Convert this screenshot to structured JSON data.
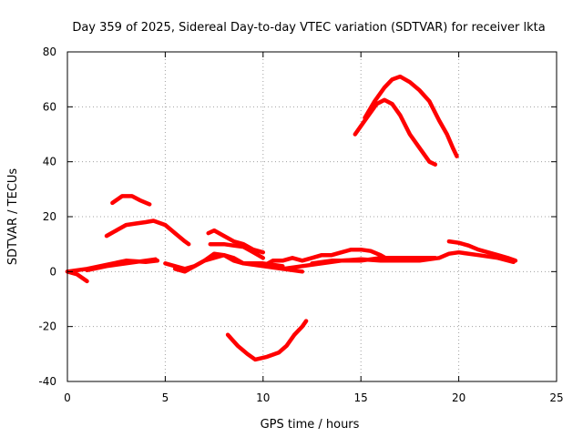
{
  "chart_data": {
    "type": "line",
    "title": "Day 359 of 2025, Sidereal Day-to-day VTEC variation (SDTVAR) for receiver lkta",
    "xlabel": "GPS time / hours",
    "ylabel": "SDTVAR / TECUs",
    "xlim": [
      0,
      25
    ],
    "ylim": [
      -40,
      80
    ],
    "xticks": [
      0,
      5,
      10,
      15,
      20,
      25
    ],
    "yticks": [
      -40,
      -20,
      0,
      20,
      40,
      60,
      80
    ],
    "grid": true,
    "color": "#ff0000",
    "series": [
      {
        "name": "s1",
        "points": [
          [
            0,
            0
          ],
          [
            0.5,
            -1
          ],
          [
            1,
            -3.5
          ]
        ]
      },
      {
        "name": "s2",
        "points": [
          [
            0,
            0
          ],
          [
            1,
            1
          ],
          [
            2,
            2.5
          ],
          [
            3,
            4
          ],
          [
            4,
            3.5
          ],
          [
            4.6,
            4
          ]
        ]
      },
      {
        "name": "s3",
        "points": [
          [
            1,
            0.5
          ],
          [
            2,
            2
          ],
          [
            3,
            3
          ],
          [
            4,
            4
          ],
          [
            4.5,
            4.5
          ]
        ]
      },
      {
        "name": "s4",
        "points": [
          [
            2,
            13
          ],
          [
            2.5,
            15
          ],
          [
            3,
            17
          ],
          [
            3.5,
            17.5
          ],
          [
            4,
            18
          ],
          [
            4.4,
            18.5
          ],
          [
            5,
            17
          ],
          [
            5.5,
            14
          ],
          [
            6,
            11
          ],
          [
            6.2,
            10
          ]
        ]
      },
      {
        "name": "s5",
        "points": [
          [
            2.3,
            25
          ],
          [
            2.8,
            27.5
          ],
          [
            3.3,
            27.5
          ],
          [
            3.7,
            26
          ],
          [
            4.2,
            24.5
          ]
        ]
      },
      {
        "name": "s6",
        "points": [
          [
            5,
            3
          ],
          [
            5.5,
            2
          ],
          [
            6,
            1
          ],
          [
            6.5,
            2
          ],
          [
            7,
            4
          ],
          [
            7.5,
            6.5
          ],
          [
            8,
            6
          ],
          [
            8.5,
            4
          ],
          [
            9,
            3
          ],
          [
            10,
            3
          ],
          [
            11,
            2
          ]
        ]
      },
      {
        "name": "s7",
        "points": [
          [
            7.2,
            14
          ],
          [
            7.5,
            15
          ],
          [
            8,
            13
          ],
          [
            8.5,
            11
          ],
          [
            9,
            10
          ],
          [
            9.5,
            8
          ],
          [
            10,
            7
          ]
        ]
      },
      {
        "name": "s8",
        "points": [
          [
            7.3,
            10
          ],
          [
            8,
            10
          ],
          [
            9,
            9
          ],
          [
            9.5,
            7
          ],
          [
            10,
            5
          ]
        ]
      },
      {
        "name": "s9",
        "points": [
          [
            5.5,
            1
          ],
          [
            6,
            0
          ],
          [
            6.5,
            2
          ],
          [
            7,
            4
          ],
          [
            8,
            6
          ],
          [
            8.5,
            5
          ],
          [
            9,
            3
          ],
          [
            10,
            2
          ],
          [
            11,
            1
          ],
          [
            12,
            0
          ]
        ]
      },
      {
        "name": "s10",
        "points": [
          [
            8.2,
            -23
          ],
          [
            8.7,
            -27
          ],
          [
            9.2,
            -30
          ],
          [
            9.6,
            -32
          ],
          [
            10.2,
            -31
          ],
          [
            10.8,
            -29.5
          ],
          [
            11.2,
            -27
          ],
          [
            11.6,
            -23
          ],
          [
            12,
            -20
          ],
          [
            12.2,
            -18
          ]
        ]
      },
      {
        "name": "s11",
        "points": [
          [
            10,
            2
          ],
          [
            10.5,
            4
          ],
          [
            11,
            4
          ],
          [
            11.5,
            5
          ],
          [
            12,
            4
          ],
          [
            12.5,
            5
          ],
          [
            13,
            6
          ],
          [
            13.5,
            6
          ],
          [
            14,
            7
          ],
          [
            14.5,
            8
          ],
          [
            15,
            8
          ],
          [
            15.5,
            7.5
          ],
          [
            16,
            6
          ],
          [
            16.5,
            4
          ]
        ]
      },
      {
        "name": "s12",
        "points": [
          [
            11,
            1
          ],
          [
            12,
            2
          ],
          [
            13,
            3
          ],
          [
            14,
            4
          ],
          [
            15,
            4.5
          ],
          [
            16,
            4
          ],
          [
            17,
            4
          ],
          [
            18,
            4
          ],
          [
            19,
            5
          ],
          [
            19.5,
            6.5
          ],
          [
            20,
            7
          ],
          [
            21,
            6
          ],
          [
            22,
            5
          ],
          [
            22.8,
            3.5
          ]
        ]
      },
      {
        "name": "s13",
        "points": [
          [
            12.5,
            3
          ],
          [
            13.5,
            4
          ],
          [
            15,
            4
          ],
          [
            16,
            5
          ],
          [
            17,
            5
          ],
          [
            18,
            5
          ],
          [
            18.8,
            5
          ]
        ]
      },
      {
        "name": "s14",
        "points": [
          [
            19.5,
            11
          ],
          [
            20,
            10.5
          ],
          [
            20.5,
            9.5
          ],
          [
            21,
            8
          ],
          [
            21.5,
            7
          ],
          [
            22,
            6
          ],
          [
            22.5,
            5
          ],
          [
            22.9,
            4
          ]
        ]
      },
      {
        "name": "s15",
        "points": [
          [
            14.7,
            50
          ],
          [
            15,
            53
          ],
          [
            15.5,
            58
          ],
          [
            15.8,
            61
          ],
          [
            16.2,
            62.5
          ],
          [
            16.6,
            61
          ],
          [
            17,
            57
          ],
          [
            17.5,
            50
          ],
          [
            18,
            45
          ],
          [
            18.5,
            40
          ],
          [
            18.8,
            39
          ]
        ]
      },
      {
        "name": "s16",
        "points": [
          [
            15.2,
            56
          ],
          [
            15.7,
            62
          ],
          [
            16.2,
            67
          ],
          [
            16.6,
            70
          ],
          [
            17,
            71
          ],
          [
            17.5,
            69
          ],
          [
            18,
            66
          ],
          [
            18.5,
            62
          ],
          [
            19,
            55
          ],
          [
            19.4,
            50
          ],
          [
            19.7,
            45
          ],
          [
            19.9,
            42
          ]
        ]
      }
    ]
  }
}
